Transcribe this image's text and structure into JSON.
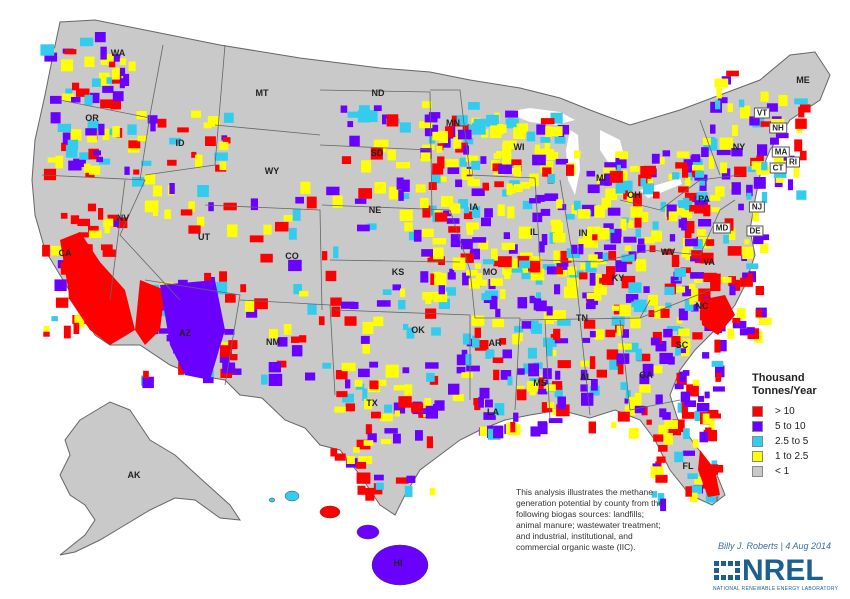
{
  "map": {
    "colors": {
      "land": "#c9c9c9",
      "border": "#ffffff",
      "state_border": "#555555",
      "water": "#ffffff"
    },
    "state_labels": [
      "WA",
      "OR",
      "CA",
      "NV",
      "ID",
      "MT",
      "WY",
      "UT",
      "AZ",
      "CO",
      "NM",
      "ND",
      "SD",
      "NE",
      "KS",
      "OK",
      "TX",
      "MN",
      "IA",
      "MO",
      "AR",
      "LA",
      "WI",
      "IL",
      "MI",
      "IN",
      "OH",
      "KY",
      "TN",
      "MS",
      "AL",
      "GA",
      "FL",
      "SC",
      "NC",
      "VA",
      "WV",
      "PA",
      "NY",
      "MD",
      "DE",
      "NJ",
      "CT",
      "RI",
      "MA",
      "VT",
      "NH",
      "ME",
      "AK",
      "HI"
    ]
  },
  "legend": {
    "title_line1": "Thousand",
    "title_line2": "Tonnes/Year",
    "items": [
      {
        "label": "> 10",
        "color": "#ff0000"
      },
      {
        "label": "5 to 10",
        "color": "#6a00ff"
      },
      {
        "label": "2.5 to 5",
        "color": "#33ccee"
      },
      {
        "label": "1 to 2.5",
        "color": "#ffff00"
      },
      {
        "label": "< 1",
        "color": "#c9c9c9"
      }
    ]
  },
  "note": "This analysis illustrates the methane generation potential by county from the following biogas sources: landfills; animal manure; wastewater treatment; and industrial, institutional, and commercial organic waste (IIC).",
  "credit": "Billy J. Roberts | 4 Aug 2014",
  "logo": {
    "name": "NREL",
    "subtitle": "NATIONAL RENEWABLE ENERGY LABORATORY"
  }
}
